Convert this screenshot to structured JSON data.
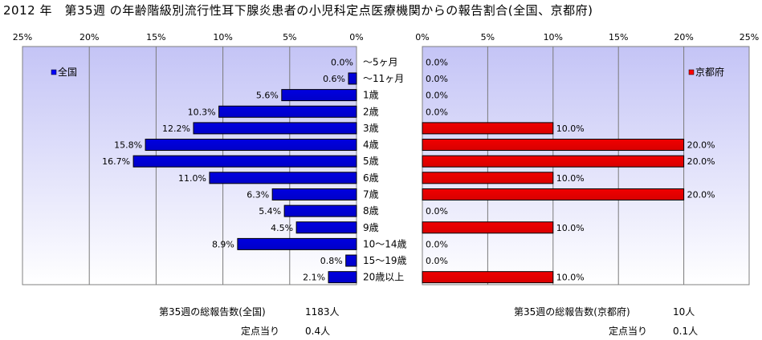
{
  "page": {
    "title": "2012 年　第35週 の年齢階級別流行性耳下腺炎患者の小児科定点医療機関からの報告割合(全国、京都府)"
  },
  "chart_data": [
    {
      "type": "bar",
      "orientation": "horizontal",
      "direction": "right-to-left",
      "legend": "全国",
      "legend_position": "top-left",
      "categories": [
        "～5ヶ月",
        "～11ヶ月",
        "1歳",
        "2歳",
        "3歳",
        "4歳",
        "5歳",
        "6歳",
        "7歳",
        "8歳",
        "9歳",
        "10～14歳",
        "15～19歳",
        "20歳以上"
      ],
      "values": [
        0.0,
        0.6,
        5.6,
        10.3,
        12.2,
        15.8,
        16.7,
        11.0,
        6.3,
        5.4,
        4.5,
        8.9,
        0.8,
        2.1
      ],
      "data_labels": [
        "0.0%",
        "0.6%",
        "5.6%",
        "10.3%",
        "12.2%",
        "15.8%",
        "16.7%",
        "11.0%",
        "6.3%",
        "5.4%",
        "4.5%",
        "8.9%",
        "0.8%",
        "2.1%"
      ],
      "xlim": [
        0,
        25
      ],
      "ticks": [
        "0%",
        "5%",
        "10%",
        "15%",
        "20%",
        "25%"
      ],
      "color": "#0000ff",
      "grid": true
    },
    {
      "type": "bar",
      "orientation": "horizontal",
      "direction": "left-to-right",
      "legend": "京都府",
      "legend_position": "top-right",
      "categories": [
        "～5ヶ月",
        "～11ヶ月",
        "1歳",
        "2歳",
        "3歳",
        "4歳",
        "5歳",
        "6歳",
        "7歳",
        "8歳",
        "9歳",
        "10～14歳",
        "15～19歳",
        "20歳以上"
      ],
      "values": [
        0.0,
        0.0,
        0.0,
        0.0,
        10.0,
        20.0,
        20.0,
        10.0,
        20.0,
        0.0,
        10.0,
        0.0,
        0.0,
        10.0
      ],
      "data_labels": [
        "0.0%",
        "0.0%",
        "0.0%",
        "0.0%",
        "10.0%",
        "20.0%",
        "20.0%",
        "10.0%",
        "20.0%",
        "0.0%",
        "10.0%",
        "0.0%",
        "0.0%",
        "10.0%"
      ],
      "xlim": [
        0,
        25
      ],
      "ticks": [
        "0%",
        "5%",
        "10%",
        "15%",
        "20%",
        "25%"
      ],
      "color": "#ff0000",
      "grid": true
    }
  ],
  "footer": {
    "national_label": "第35週の総報告数(全国)",
    "national_value": "1183人",
    "national_per_label": "定点当り",
    "national_per_value": "0.4人",
    "kyoto_label": "第35週の総報告数(京都府)",
    "kyoto_value": "10人",
    "kyoto_per_label": "定点当り",
    "kyoto_per_value": "0.1人"
  }
}
